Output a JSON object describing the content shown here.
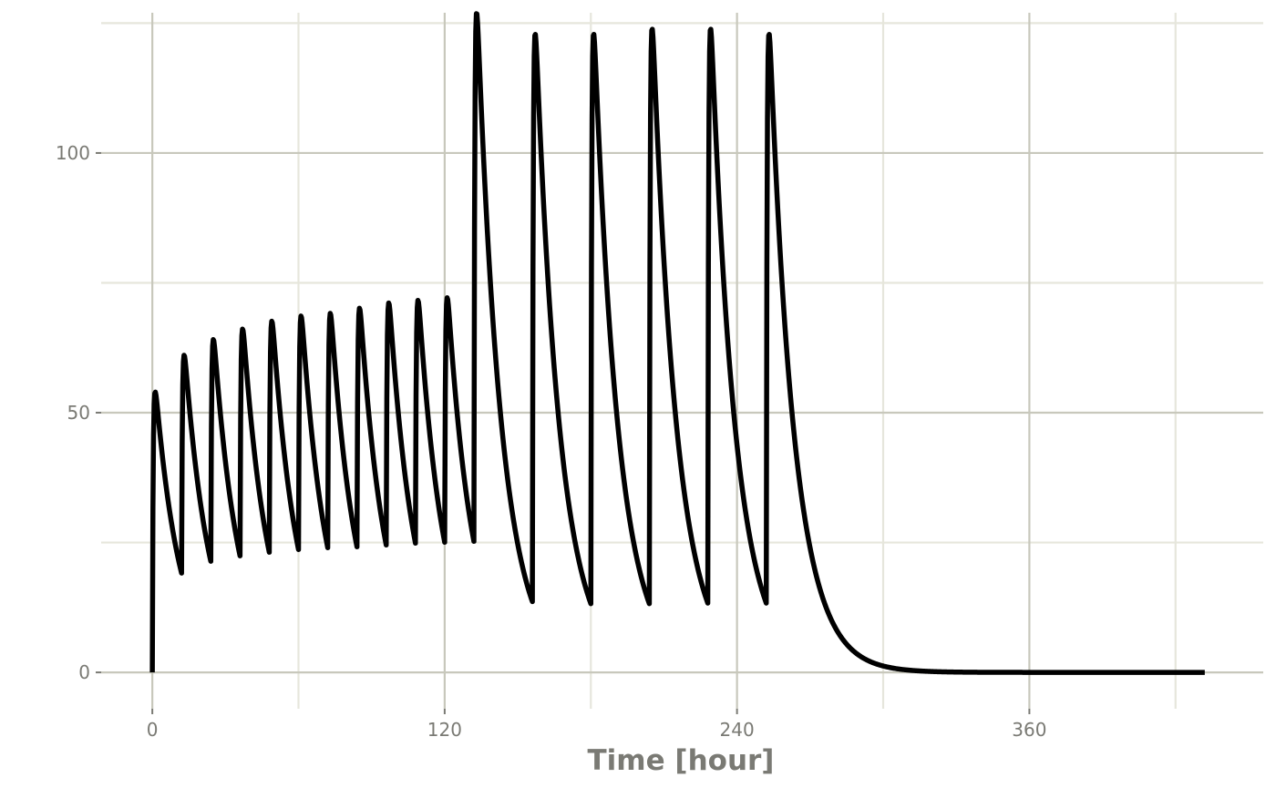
{
  "chart_data": {
    "type": "line",
    "title": "",
    "xlabel": "Time [hour]",
    "ylabel": "",
    "xlim": [
      -21,
      456
    ],
    "ylim": [
      -7,
      127
    ],
    "x_major_ticks": [
      0,
      120,
      240,
      360
    ],
    "x_tick_labels": [
      "0",
      "120",
      "240",
      "360"
    ],
    "x_minor_ticks": [
      60,
      180,
      300,
      420
    ],
    "y_major_ticks": [
      0,
      50,
      100
    ],
    "y_tick_labels": [
      "0",
      "50",
      "100"
    ],
    "y_minor_ticks": [
      25,
      75,
      125
    ],
    "grid": true,
    "legend": "none",
    "line_color": "#000000",
    "dosing": {
      "phase1": {
        "start": 0,
        "interval": 12,
        "doses": 11,
        "peak_offset": 1.5,
        "peaks": [
          54,
          61,
          64,
          66,
          67.5,
          68.5,
          69,
          70,
          71,
          71.5,
          72
        ]
      },
      "phase2": {
        "start": 132,
        "interval": 24,
        "doses": 6,
        "peak_offset": 1.5,
        "peaks": [
          127,
          123,
          123,
          124,
          124,
          123
        ]
      },
      "elimination_half_life_hours": 7,
      "end_time": 432
    }
  }
}
